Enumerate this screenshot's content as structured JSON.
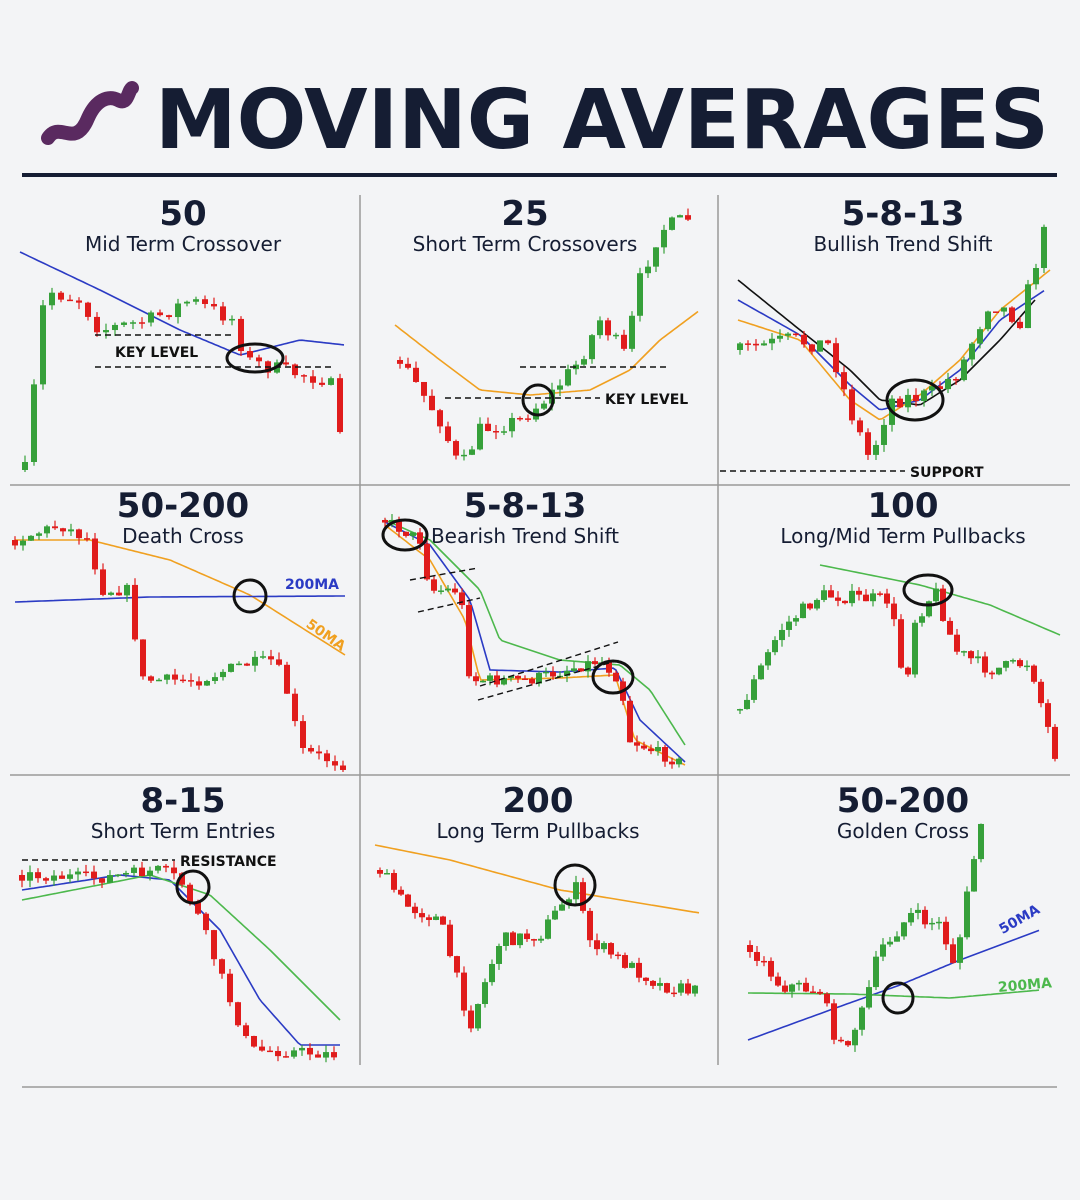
{
  "title": "MOVING AVERAGES",
  "panels": [
    {
      "number": "50",
      "subtitle": "Mid Term Crossover",
      "annotations": [
        "KEY LEVEL"
      ]
    },
    {
      "number": "25",
      "subtitle": "Short Term Crossovers",
      "annotations": [
        "KEY LEVEL"
      ]
    },
    {
      "number": "5-8-13",
      "subtitle": "Bullish Trend Shift",
      "annotations": [
        "SUPPORT"
      ]
    },
    {
      "number": "50-200",
      "subtitle": "Death Cross",
      "annotations": [
        "200MA",
        "50MA"
      ]
    },
    {
      "number": "5-8-13",
      "subtitle": "Bearish Trend Shift",
      "annotations": []
    },
    {
      "number": "100",
      "subtitle": "Long/Mid Term Pullbacks",
      "annotations": []
    },
    {
      "number": "8-15",
      "subtitle": "Short Term Entries",
      "annotations": [
        "RESISTANCE"
      ]
    },
    {
      "number": "200",
      "subtitle": "Long Term Pullbacks",
      "annotations": []
    },
    {
      "number": "50-200",
      "subtitle": "Golden Cross",
      "annotations": [
        "50MA",
        "200MA"
      ]
    }
  ]
}
